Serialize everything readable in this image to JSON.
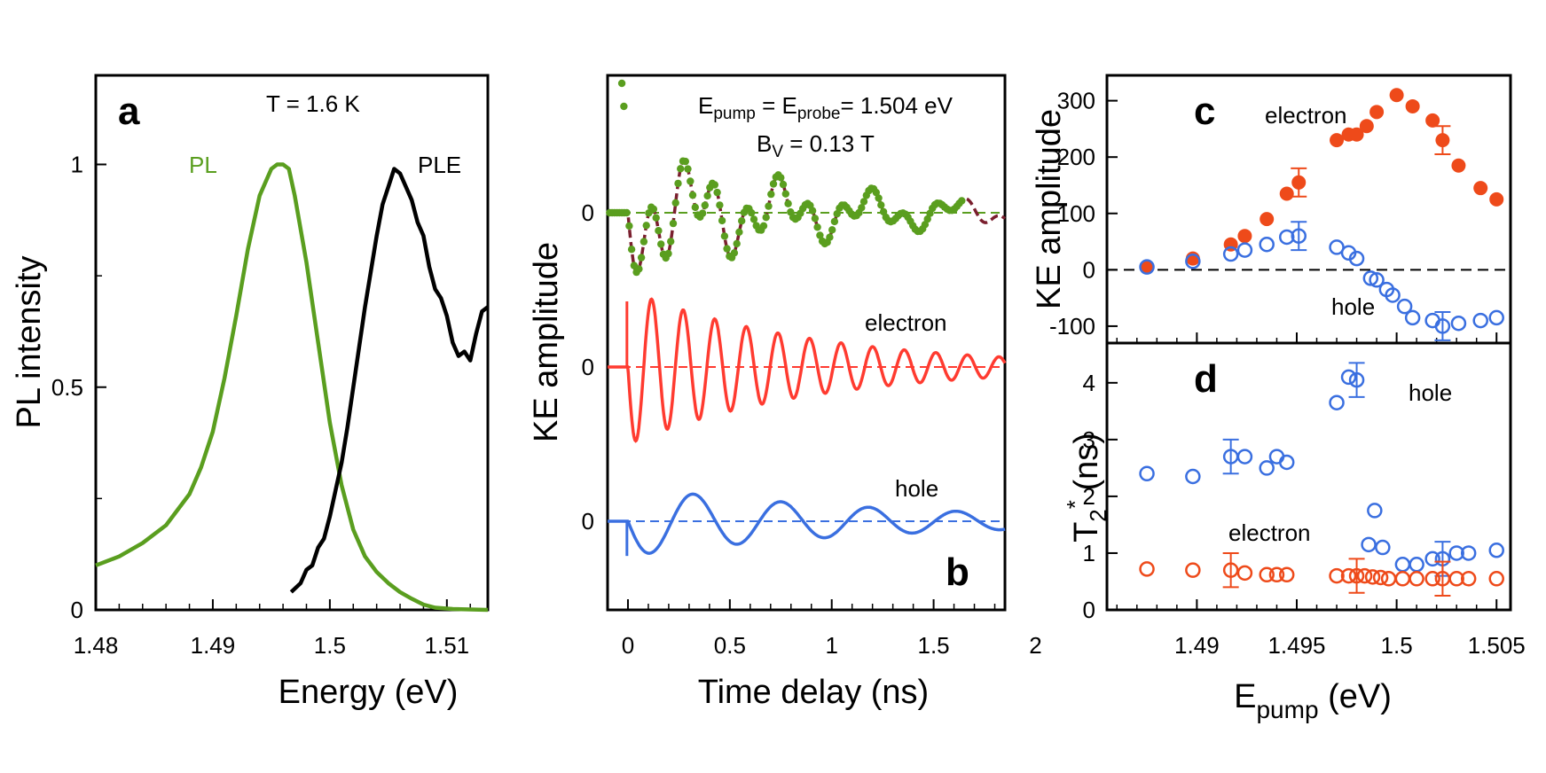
{
  "chart_data": [
    {
      "panel": "a",
      "type": "line",
      "title": "T = 1.6 K",
      "xlabel": "Energy (eV)",
      "ylabel": "PL intensity",
      "xlim": [
        1.48,
        1.5135
      ],
      "ylim": [
        0,
        1.2
      ],
      "xticks": [
        1.48,
        1.49,
        1.5,
        1.51
      ],
      "xtick_labels": [
        "1.48",
        "1.49",
        "1.5",
        "1.51"
      ],
      "yticks": [
        0,
        0.5,
        1
      ],
      "ytick_labels": [
        "0",
        "0.5",
        "1"
      ],
      "series": [
        {
          "name": "PL",
          "color": "#5a9e1f",
          "x": [
            1.48,
            1.482,
            1.484,
            1.486,
            1.488,
            1.489,
            1.49,
            1.491,
            1.492,
            1.493,
            1.494,
            1.495,
            1.4955,
            1.496,
            1.4965,
            1.497,
            1.498,
            1.499,
            1.5,
            1.501,
            1.502,
            1.503,
            1.504,
            1.505,
            1.506,
            1.507,
            1.508,
            1.509,
            1.5105,
            1.512,
            1.5135
          ],
          "y": [
            0.1,
            0.12,
            0.15,
            0.19,
            0.26,
            0.32,
            0.4,
            0.52,
            0.66,
            0.81,
            0.93,
            0.99,
            1.0,
            1.0,
            0.99,
            0.93,
            0.78,
            0.6,
            0.42,
            0.28,
            0.18,
            0.12,
            0.085,
            0.06,
            0.04,
            0.025,
            0.012,
            0.005,
            0.002,
            0.001,
            0.0
          ]
        },
        {
          "name": "PLE",
          "color": "#000000",
          "x": [
            1.4967,
            1.4975,
            1.498,
            1.4985,
            1.499,
            1.4995,
            1.5,
            1.5005,
            1.501,
            1.5015,
            1.502,
            1.5025,
            1.503,
            1.5035,
            1.504,
            1.5045,
            1.505,
            1.5055,
            1.506,
            1.5065,
            1.507,
            1.5075,
            1.508,
            1.5085,
            1.509,
            1.5095,
            1.51,
            1.5105,
            1.511,
            1.5115,
            1.512,
            1.5125,
            1.513,
            1.5135
          ],
          "y": [
            0.04,
            0.06,
            0.09,
            0.1,
            0.14,
            0.16,
            0.21,
            0.27,
            0.33,
            0.41,
            0.5,
            0.59,
            0.68,
            0.76,
            0.84,
            0.91,
            0.95,
            0.99,
            0.98,
            0.95,
            0.92,
            0.87,
            0.84,
            0.77,
            0.72,
            0.7,
            0.66,
            0.6,
            0.57,
            0.58,
            0.56,
            0.62,
            0.67,
            0.68
          ]
        }
      ],
      "annotations": [
        "PL",
        "PLE"
      ]
    },
    {
      "panel": "b",
      "type": "line",
      "xlabel": "Time delay (ns)",
      "ylabel": "KE amplitude",
      "xlim": [
        -0.1,
        1.85
      ],
      "xticks": [
        0,
        0.5,
        1,
        1.5,
        2
      ],
      "xtick_labels": [
        "0",
        "0.5",
        "1",
        "1.5",
        "2"
      ],
      "ytick_labels": [
        "0",
        "0",
        "0"
      ],
      "annotation_line1_parts": {
        "e1": "E",
        "s1": "pump",
        "mid": " = E",
        "s2": "probe",
        "end": "= 1.504 eV"
      },
      "annotation_line2_parts": {
        "b": "B",
        "sub": "V",
        "end": " = 0.13 T"
      },
      "series": [
        {
          "name": "measured (dots)",
          "color": "#5a9e1f",
          "offset": 0,
          "e_amp": 0.55,
          "h_amp": 0.45,
          "e_tau": 0.9,
          "h_tau": 1.3,
          "e_per": 0.155,
          "h_per": 0.43
        },
        {
          "name": "fit (dashed)",
          "color": "#7a1f2e",
          "offset": 0,
          "e_amp": 0.55,
          "h_amp": 0.45,
          "e_tau": 0.9,
          "h_tau": 1.3,
          "e_per": 0.155,
          "h_per": 0.43
        },
        {
          "name": "electron",
          "color": "#ff3b30",
          "offset": -2.0,
          "amp": 1.0,
          "tau": 0.9,
          "period": 0.155
        },
        {
          "name": "hole",
          "color": "#3a6fe0",
          "offset": -4.0,
          "amp": 0.45,
          "tau": 1.3,
          "period": 0.43
        }
      ],
      "annotations": [
        "electron",
        "hole"
      ]
    },
    {
      "panel": "c",
      "type": "scatter",
      "ylabel": "KE amplitude",
      "xlim": [
        1.4855,
        1.5057
      ],
      "ylim": [
        -130,
        345
      ],
      "yticks": [
        -100,
        0,
        100,
        200,
        300
      ],
      "ytick_labels": [
        "-100",
        "0",
        "100",
        "200",
        "300"
      ],
      "series": [
        {
          "name": "electron",
          "color": "#ee4a1a",
          "filled": true,
          "x": [
            1.4875,
            1.4898,
            1.4917,
            1.4924,
            1.4935,
            1.4945,
            1.4951,
            1.497,
            1.4976,
            1.498,
            1.4985,
            1.499,
            1.5,
            1.5008,
            1.5018,
            1.5023,
            1.5031,
            1.5042,
            1.505
          ],
          "y": [
            5,
            20,
            45,
            60,
            90,
            135,
            155,
            230,
            240,
            240,
            255,
            280,
            310,
            290,
            265,
            230,
            185,
            145,
            125
          ],
          "yerr": [
            0,
            0,
            0,
            0,
            0,
            0,
            25,
            0,
            0,
            0,
            0,
            0,
            0,
            0,
            0,
            25,
            0,
            0,
            0
          ]
        },
        {
          "name": "hole",
          "color": "#3a6fe0",
          "filled": false,
          "x": [
            1.4875,
            1.4898,
            1.4917,
            1.4924,
            1.4935,
            1.4945,
            1.4951,
            1.497,
            1.4976,
            1.498,
            1.4987,
            1.499,
            1.4995,
            1.4998,
            1.5004,
            1.5008,
            1.5018,
            1.5023,
            1.5031,
            1.5042,
            1.505
          ],
          "y": [
            5,
            15,
            28,
            35,
            45,
            58,
            60,
            40,
            30,
            20,
            -15,
            -18,
            -35,
            -45,
            -65,
            -85,
            -90,
            -100,
            -95,
            -90,
            -85
          ],
          "yerr": [
            0,
            0,
            0,
            0,
            0,
            0,
            25,
            0,
            0,
            0,
            0,
            0,
            0,
            0,
            0,
            0,
            0,
            25,
            0,
            0,
            0
          ]
        }
      ],
      "annotations": [
        "electron",
        "hole"
      ]
    },
    {
      "panel": "d",
      "type": "scatter",
      "xlabel_parts": {
        "e": "E",
        "sub": "pump",
        "rest": " (eV)"
      },
      "ylabel_parts": {
        "t": "T",
        "sub": "2",
        "sup": "*",
        "rest": " (ns)"
      },
      "xlim": [
        1.4855,
        1.5057
      ],
      "ylim": [
        0,
        4.7
      ],
      "xticks": [
        1.49,
        1.495,
        1.5,
        1.505
      ],
      "xtick_labels": [
        "1.49",
        "1.495",
        "1.5",
        "1.505"
      ],
      "yticks": [
        0,
        1,
        2,
        3,
        4
      ],
      "ytick_labels": [
        "0",
        "1",
        "2",
        "3",
        "4"
      ],
      "series": [
        {
          "name": "hole",
          "color": "#3a6fe0",
          "filled": false,
          "x": [
            1.4875,
            1.4898,
            1.4917,
            1.4924,
            1.4935,
            1.494,
            1.4945,
            1.497,
            1.4976,
            1.498,
            1.4986,
            1.4989,
            1.4993,
            1.5003,
            1.501,
            1.5018,
            1.5023,
            1.503,
            1.5036,
            1.505
          ],
          "y": [
            2.4,
            2.35,
            2.7,
            2.7,
            2.5,
            2.7,
            2.6,
            3.65,
            4.1,
            4.05,
            1.15,
            1.75,
            1.1,
            0.8,
            0.8,
            0.9,
            0.9,
            1.0,
            1.0,
            1.05
          ],
          "yerr": [
            0,
            0,
            0.3,
            0,
            0,
            0,
            0,
            0,
            0,
            0.3,
            0,
            0,
            0,
            0,
            0,
            0,
            0.3,
            0,
            0,
            0
          ]
        },
        {
          "name": "electron",
          "color": "#ee4a1a",
          "filled": false,
          "x": [
            1.4875,
            1.4898,
            1.4917,
            1.4924,
            1.4935,
            1.494,
            1.4945,
            1.497,
            1.4976,
            1.498,
            1.4984,
            1.4988,
            1.4992,
            1.4996,
            1.5003,
            1.501,
            1.5018,
            1.5023,
            1.503,
            1.5036,
            1.505
          ],
          "y": [
            0.72,
            0.7,
            0.7,
            0.65,
            0.62,
            0.62,
            0.62,
            0.6,
            0.6,
            0.6,
            0.6,
            0.58,
            0.57,
            0.55,
            0.55,
            0.55,
            0.55,
            0.55,
            0.55,
            0.55,
            0.55
          ],
          "yerr": [
            0,
            0,
            0.3,
            0,
            0,
            0,
            0,
            0,
            0,
            0.3,
            0,
            0,
            0,
            0,
            0,
            0,
            0,
            0.3,
            0,
            0,
            0
          ]
        }
      ],
      "annotations": [
        "hole",
        "electron"
      ]
    }
  ],
  "labels": {
    "a_letter": "a",
    "b_letter": "b",
    "c_letter": "c",
    "d_letter": "d",
    "a_title": "T = 1.6 K",
    "a_pl": "PL",
    "a_ple": "PLE",
    "a_xlabel": "Energy (eV)",
    "a_ylabel": "PL intensity",
    "b_electron": "electron",
    "b_hole": "hole",
    "b_xlabel": "Time delay (ns)",
    "b_ylabel": "KE amplitude",
    "c_electron": "electron",
    "c_hole": "hole",
    "c_ylabel": "KE amplitude",
    "d_hole": "hole",
    "d_electron": "electron"
  },
  "colors": {
    "green": "#5a9e1f",
    "black": "#000000",
    "red": "#ff3b30",
    "orange": "#ee4a1a",
    "blue": "#3a6fe0",
    "fit": "#7a1f2e"
  }
}
